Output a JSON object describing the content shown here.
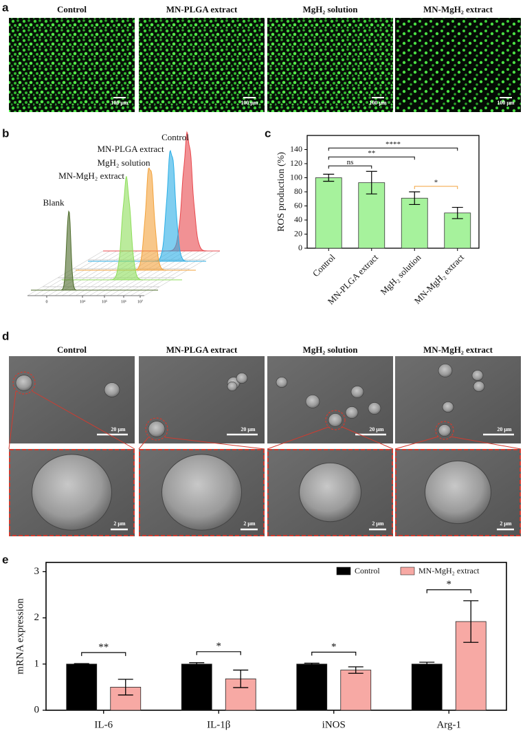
{
  "panel_labels": [
    "a",
    "b",
    "c",
    "d",
    "e"
  ],
  "panel_a": {
    "titles": [
      "Control",
      "MN-PLGA extract",
      "MgH₂ solution",
      "MN-MgH₂ extract"
    ],
    "scale_bars": [
      "100 μm",
      "100 μm",
      "100 μm",
      "100 μm"
    ]
  },
  "panel_b": {
    "series": [
      {
        "name": "Control",
        "color": "#e8474c"
      },
      {
        "name": "MN-PLGA extract",
        "color": "#29aee6"
      },
      {
        "name": "MgH₂ solution",
        "color": "#f3a23a"
      },
      {
        "name": "MN-MgH₂ extract",
        "color": "#8ede5a"
      },
      {
        "name": "Blank",
        "color": "#4c6b2a"
      }
    ],
    "x_tick_labels": [
      "0",
      "10⁴",
      "10⁵",
      "10⁶",
      "10⁷"
    ]
  },
  "panel_d": {
    "titles": [
      "Control",
      "MN-PLGA extract",
      "MgH₂ solution",
      "MN-MgH₂ extract"
    ],
    "scale_bars_low": [
      "20 μm",
      "20 μm",
      "20 μm",
      "20 μm"
    ],
    "scale_bars_high": [
      "2 μm",
      "2 μm",
      "2 μm",
      "2 μm"
    ]
  },
  "chart_data": [
    {
      "type": "bar",
      "ylabel": "ROS production (%)",
      "categories": [
        "Control",
        "MN-PLGA extract",
        "MgH₂ solution",
        "MN-MgH₂ extract"
      ],
      "values": [
        100,
        93,
        71,
        50
      ],
      "errors": [
        5,
        16,
        9,
        8
      ],
      "color": "#a6f29c",
      "ylim": [
        0,
        160
      ],
      "yticks": [
        0,
        20,
        40,
        60,
        80,
        100,
        120,
        140
      ],
      "annotations": [
        {
          "text": "ns",
          "between": [
            0,
            1
          ]
        },
        {
          "text": "**",
          "between": [
            0,
            2
          ]
        },
        {
          "text": "****",
          "between": [
            0,
            3
          ]
        },
        {
          "text": "*",
          "between": [
            2,
            3
          ],
          "color": "#f3a23a"
        }
      ]
    },
    {
      "type": "grouped_bar",
      "ylabel": "mRNA expression",
      "categories": [
        "IL-6",
        "IL-1β",
        "iNOS",
        "Arg-1"
      ],
      "series": [
        {
          "name": "Control",
          "color": "#000000",
          "values": [
            1,
            1,
            1,
            1
          ],
          "errors": [
            0.01,
            0.03,
            0.02,
            0.04
          ]
        },
        {
          "name": "MN-MgH₂ extract",
          "color": "#f7a9a4",
          "values": [
            0.5,
            0.68,
            0.87,
            1.92
          ],
          "errors": [
            0.17,
            0.19,
            0.07,
            0.45
          ]
        }
      ],
      "ylim": [
        0,
        3.2
      ],
      "yticks": [
        0,
        1,
        2,
        3
      ],
      "legend": "top-right",
      "annotations": [
        {
          "text": "**",
          "category": 0
        },
        {
          "text": "*",
          "category": 1
        },
        {
          "text": "*",
          "category": 2
        },
        {
          "text": "*",
          "category": 3
        }
      ]
    }
  ]
}
